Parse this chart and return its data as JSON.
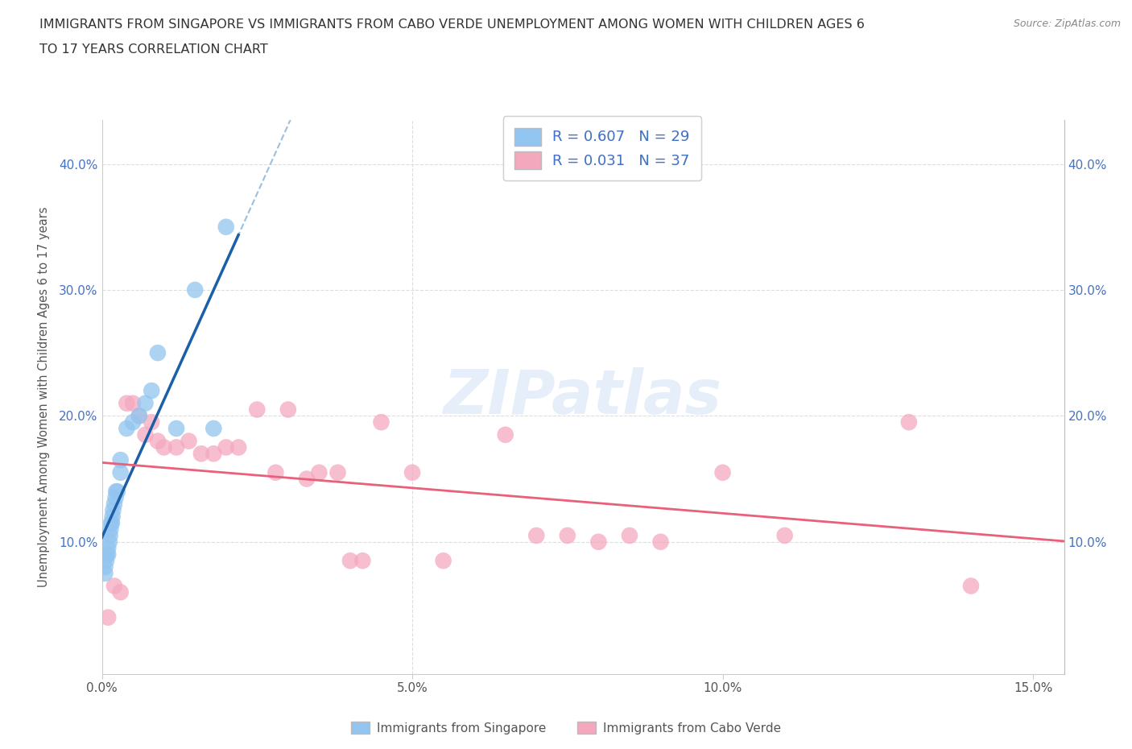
{
  "title_line1": "IMMIGRANTS FROM SINGAPORE VS IMMIGRANTS FROM CABO VERDE UNEMPLOYMENT AMONG WOMEN WITH CHILDREN AGES 6",
  "title_line2": "TO 17 YEARS CORRELATION CHART",
  "source": "Source: ZipAtlas.com",
  "ylabel": "Unemployment Among Women with Children Ages 6 to 17 years",
  "xlim": [
    0.0,
    0.155
  ],
  "ylim": [
    -0.005,
    0.435
  ],
  "xticks": [
    0.0,
    0.05,
    0.1,
    0.15
  ],
  "xtick_labels": [
    "0.0%",
    "5.0%",
    "10.0%",
    "15.0%"
  ],
  "yticks": [
    0.0,
    0.1,
    0.2,
    0.3,
    0.4
  ],
  "ytick_labels": [
    "",
    "10.0%",
    "20.0%",
    "30.0%",
    "40.0%"
  ],
  "singapore_color": "#92c5f0",
  "cabo_verde_color": "#f4a8be",
  "singapore_R": 0.607,
  "singapore_N": 29,
  "cabo_verde_R": 0.031,
  "cabo_verde_N": 37,
  "singapore_line_color": "#1a5fa8",
  "cabo_verde_line_color": "#e8607a",
  "regression_dashed_color": "#9bbfe0",
  "background_color": "#ffffff",
  "sg_x": [
    0.0005,
    0.0005,
    0.0007,
    0.0008,
    0.001,
    0.001,
    0.0012,
    0.0013,
    0.0014,
    0.0015,
    0.0016,
    0.0017,
    0.0018,
    0.002,
    0.0022,
    0.0023,
    0.0025,
    0.003,
    0.003,
    0.004,
    0.005,
    0.006,
    0.007,
    0.008,
    0.009,
    0.012,
    0.015,
    0.018,
    0.02
  ],
  "sg_y": [
    0.075,
    0.08,
    0.085,
    0.09,
    0.09,
    0.095,
    0.1,
    0.105,
    0.11,
    0.115,
    0.115,
    0.12,
    0.125,
    0.13,
    0.135,
    0.14,
    0.14,
    0.155,
    0.165,
    0.19,
    0.195,
    0.2,
    0.21,
    0.22,
    0.25,
    0.19,
    0.3,
    0.19,
    0.35
  ],
  "cv_x": [
    0.001,
    0.002,
    0.003,
    0.004,
    0.005,
    0.006,
    0.007,
    0.008,
    0.009,
    0.01,
    0.012,
    0.014,
    0.016,
    0.018,
    0.02,
    0.022,
    0.025,
    0.028,
    0.03,
    0.033,
    0.035,
    0.038,
    0.04,
    0.042,
    0.045,
    0.05,
    0.055,
    0.065,
    0.07,
    0.075,
    0.08,
    0.085,
    0.09,
    0.1,
    0.11,
    0.13,
    0.14
  ],
  "cv_y": [
    0.04,
    0.065,
    0.06,
    0.21,
    0.21,
    0.2,
    0.185,
    0.195,
    0.18,
    0.175,
    0.175,
    0.18,
    0.17,
    0.17,
    0.175,
    0.175,
    0.205,
    0.155,
    0.205,
    0.15,
    0.155,
    0.155,
    0.085,
    0.085,
    0.195,
    0.155,
    0.085,
    0.185,
    0.105,
    0.105,
    0.1,
    0.105,
    0.1,
    0.155,
    0.105,
    0.195,
    0.065
  ]
}
